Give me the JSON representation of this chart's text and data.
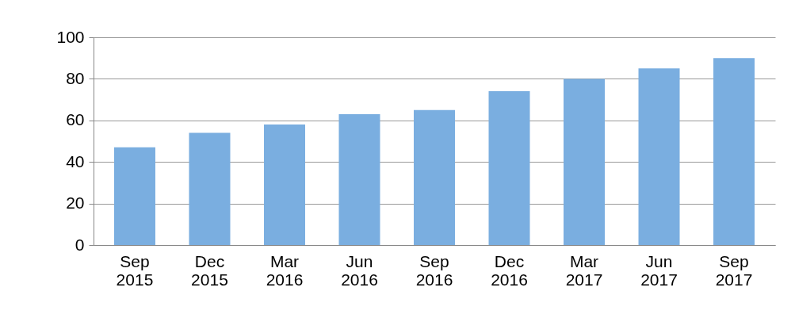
{
  "chart_data": {
    "type": "bar",
    "categories": [
      "Sep 2015",
      "Dec 2015",
      "Mar 2016",
      "Jun 2016",
      "Sep 2016",
      "Dec 2016",
      "Mar 2017",
      "Jun 2017",
      "Sep 2017"
    ],
    "values": [
      47,
      54,
      58,
      63,
      65,
      74,
      80,
      85,
      90
    ],
    "color": "#7aaee0",
    "ylim": [
      0,
      100
    ],
    "yticks": [
      0,
      20,
      40,
      60,
      80,
      100
    ],
    "grid": "y"
  }
}
